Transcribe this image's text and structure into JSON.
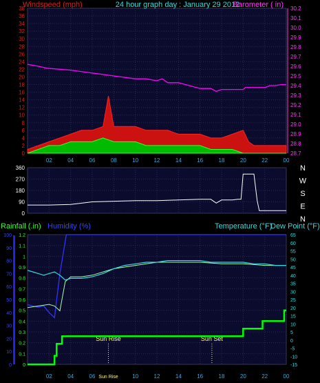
{
  "chart_data": [
    {
      "type": "line",
      "title": "24 hour graph day : January 29 2012",
      "left_label": "Windspeed (mph)",
      "right_label": "Barometer ( in)",
      "x_ticks": [
        "02",
        "04",
        "06",
        "08",
        "10",
        "12",
        "14",
        "16",
        "18",
        "20",
        "22",
        "00"
      ],
      "y_left_ticks": [
        "0",
        "2",
        "4",
        "6",
        "8",
        "10",
        "12",
        "14",
        "16",
        "18",
        "20",
        "22",
        "24",
        "26",
        "28",
        "30",
        "32",
        "34",
        "36",
        "38"
      ],
      "y_right_ticks": [
        "28.7",
        "28.8",
        "28.9",
        "29.0",
        "29.1",
        "29.2",
        "29.3",
        "29.4",
        "29.5",
        "29.6",
        "29.7",
        "29.8",
        "29.9",
        "30.0",
        "30.1",
        "30.2"
      ],
      "ylim_left": [
        0,
        38
      ],
      "ylim_right": [
        28.7,
        30.2
      ],
      "series": [
        {
          "color": "#ff00ff",
          "x": [
            0,
            1,
            1.8,
            4,
            6,
            8,
            10,
            11,
            12,
            12.5,
            13,
            14,
            15,
            16,
            17,
            17.5,
            18,
            19,
            19.5,
            20,
            20.2,
            21,
            22,
            22.5,
            23,
            23.5,
            24
          ],
          "values": [
            29.62,
            29.6,
            29.58,
            29.56,
            29.53,
            29.5,
            29.47,
            29.47,
            29.45,
            29.47,
            29.43,
            29.43,
            29.4,
            29.37,
            29.37,
            29.34,
            29.36,
            29.36,
            29.36,
            29.36,
            29.38,
            29.38,
            29.38,
            29.4,
            29.4,
            29.41,
            29.41
          ]
        },
        {
          "color": "#dd1111",
          "x": [
            0,
            1,
            2,
            3,
            4,
            5,
            6,
            7,
            7.5,
            8,
            9,
            10,
            11,
            12,
            13,
            14,
            15,
            16,
            17,
            18,
            19,
            20,
            20.5,
            21,
            22,
            23,
            24
          ],
          "values": [
            1,
            2,
            3,
            4,
            5,
            6,
            6,
            7,
            15,
            7,
            7,
            7,
            6,
            6,
            6,
            5,
            5,
            5,
            4,
            4,
            5,
            6,
            3,
            2,
            2,
            2,
            2
          ]
        },
        {
          "color": "#00dd00",
          "x": [
            0,
            1,
            2,
            3,
            4,
            5,
            6,
            7,
            8,
            9,
            10,
            11,
            12,
            13,
            14,
            15,
            16,
            17,
            18,
            19,
            20,
            21,
            22,
            23,
            24
          ],
          "values": [
            0,
            1,
            2,
            2,
            3,
            3,
            3,
            4,
            3,
            3,
            3,
            2,
            2,
            2,
            2,
            2,
            2,
            1,
            1,
            1,
            0,
            0,
            0,
            0,
            0
          ]
        }
      ]
    },
    {
      "type": "line",
      "x_ticks": [
        "02",
        "04",
        "06",
        "08",
        "10",
        "12",
        "14",
        "16",
        "18",
        "20",
        "22",
        "00"
      ],
      "y_ticks": [
        "0",
        "90",
        "180",
        "270",
        "360"
      ],
      "ylim": [
        0,
        360
      ],
      "compass": [
        "N",
        "W",
        "S",
        "E",
        "N"
      ],
      "series": [
        {
          "color": "#ffffff",
          "x": [
            0,
            2,
            4,
            6,
            8,
            10,
            12,
            14,
            16,
            17,
            17.5,
            18,
            19,
            19.5,
            19.8,
            20,
            21,
            21.3,
            21.5,
            22,
            24
          ],
          "values": [
            65,
            65,
            70,
            90,
            95,
            100,
            100,
            105,
            110,
            110,
            80,
            105,
            105,
            110,
            110,
            310,
            310,
            100,
            20,
            20,
            20
          ]
        }
      ]
    },
    {
      "type": "line",
      "left_label_1": "Rainfall (.in)",
      "left_label_2": "Humidity (%)",
      "right_label_1": "Temperature (°F)",
      "right_label_2": "Dew Point (°F)",
      "x_ticks": [
        "02",
        "04",
        "06",
        "08",
        "10",
        "12",
        "14",
        "16",
        "18",
        "20",
        "22",
        "00"
      ],
      "y_left_humidity_ticks": [
        "0",
        "10",
        "20",
        "30",
        "40",
        "50",
        "60",
        "70",
        "80",
        "90",
        "100"
      ],
      "y_left_rain_ticks": [
        "0",
        "0.1",
        "0.2",
        "0.3",
        "0.4",
        "0.5",
        "0.6",
        "0.7",
        "0.8",
        "0.9",
        "1",
        "1.1",
        "1.2"
      ],
      "y_right_ticks": [
        "-15",
        "-10",
        "-5",
        "0",
        "5",
        "10",
        "15",
        "20",
        "25",
        "30",
        "35",
        "40",
        "45",
        "50",
        "55",
        "60",
        "65"
      ],
      "ylim_humidity": [
        0,
        100
      ],
      "ylim_rain": [
        0,
        1.2
      ],
      "ylim_temp": [
        -15,
        65
      ],
      "sunrise_label": "Sun Rise",
      "sunset_label": "Sun Set",
      "sunrise_hour": 7.5,
      "sunset_hour": 17.1,
      "series": [
        {
          "name": "Humidity",
          "color": "#3333ff",
          "x": [
            0,
            0.5,
            1,
            1.5,
            2,
            2.5,
            3,
            3.4,
            3.6,
            4,
            24
          ],
          "values": [
            46,
            45,
            44,
            45,
            40,
            36,
            70,
            90,
            100,
            100,
            100
          ]
        },
        {
          "name": "Temperature",
          "color": "#33dddd",
          "x": [
            0,
            0.5,
            1,
            1.5,
            2,
            2.5,
            3,
            3.5,
            4,
            5,
            6,
            7,
            8,
            9,
            10,
            11,
            12,
            13,
            14,
            15,
            16,
            17,
            18,
            19,
            20,
            21,
            22,
            23,
            24
          ],
          "values": [
            43,
            42,
            41,
            40,
            41,
            42,
            40,
            37,
            38,
            38,
            39,
            41,
            44,
            46,
            47,
            48,
            48,
            49,
            49,
            49,
            49,
            48,
            48,
            48,
            48,
            47,
            47,
            46,
            46
          ]
        },
        {
          "name": "Dew Point",
          "color": "#aaffaa",
          "x": [
            0,
            1,
            2,
            2.5,
            3,
            3.5,
            4,
            5,
            6,
            8,
            10,
            12,
            14,
            16,
            18,
            20,
            22,
            24
          ],
          "values": [
            20,
            21,
            22,
            21,
            18,
            36,
            39,
            39,
            40,
            44,
            46,
            48,
            48,
            48,
            47,
            47,
            46,
            46
          ]
        },
        {
          "name": "Rainfall",
          "color": "#00ff00",
          "x": [
            0,
            2.5,
            2.5,
            2.7,
            2.7,
            3.2,
            3.2,
            4,
            4,
            16,
            16,
            20,
            20,
            21.8,
            21.8,
            23.8,
            23.8,
            24
          ],
          "values": [
            0,
            0,
            0.08,
            0.08,
            0.19,
            0.19,
            0.26,
            0.26,
            0.26,
            0.26,
            0.26,
            0.26,
            0.33,
            0.33,
            0.4,
            0.4,
            0.5,
            0.5
          ]
        }
      ]
    }
  ]
}
